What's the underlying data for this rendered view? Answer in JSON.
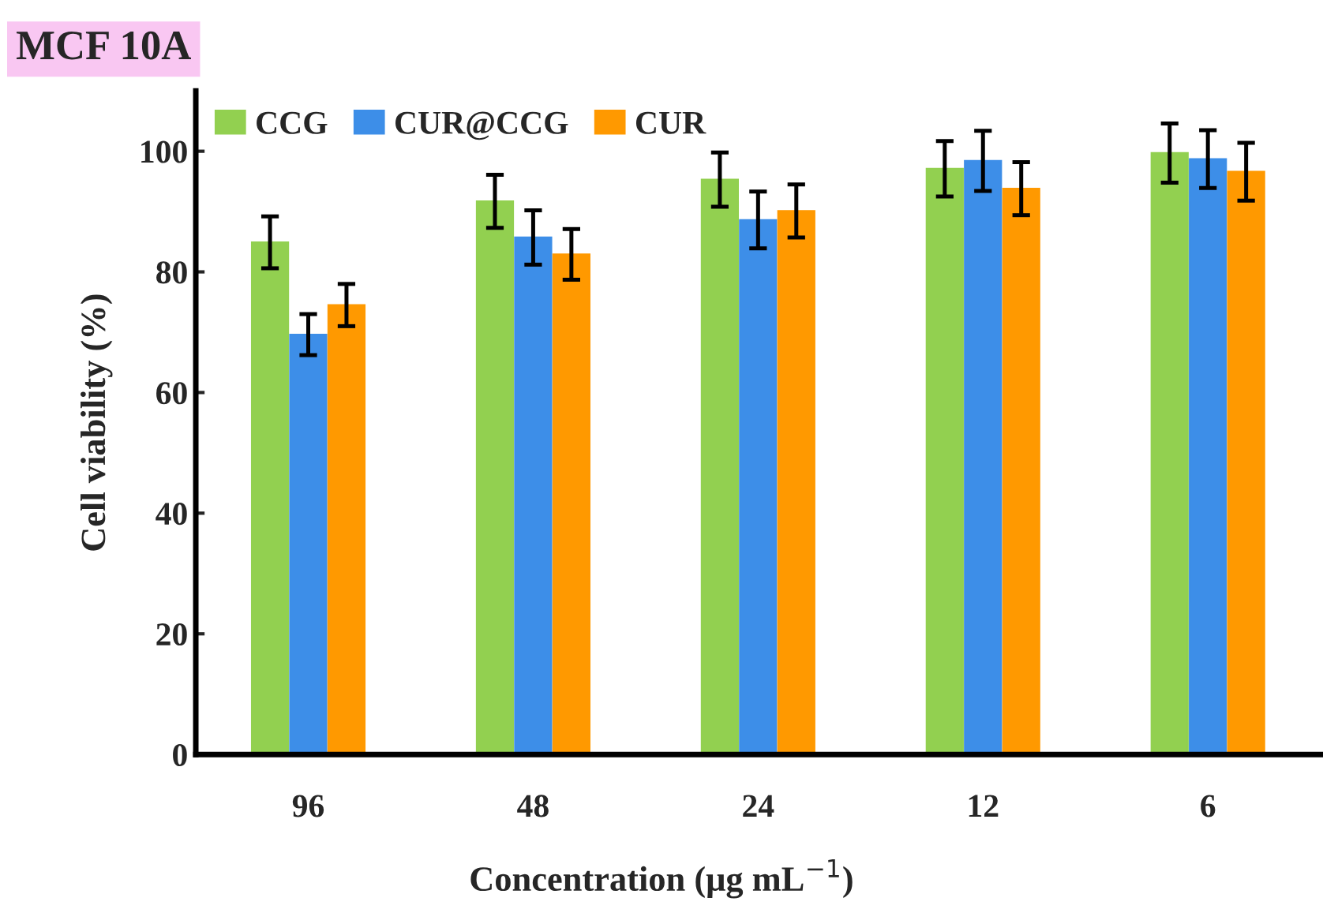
{
  "chart_data": {
    "type": "bar",
    "title": "MCF 10A",
    "xlabel": "Concentration (μg mL$^{−1}$)",
    "ylabel": "Cell viability (%)",
    "categories": [
      "96",
      "48",
      "24",
      "12",
      "6"
    ],
    "series": [
      {
        "name": "CCG",
        "color": "#92d050",
        "values": [
          84.9,
          91.7,
          95.3,
          97.1,
          99.7
        ],
        "errors": [
          4.3,
          4.4,
          4.5,
          4.6,
          4.9
        ]
      },
      {
        "name": "CUR@CCG",
        "color": "#3d8ee8",
        "values": [
          69.6,
          85.7,
          88.6,
          98.4,
          98.7
        ],
        "errors": [
          3.4,
          4.5,
          4.7,
          5.0,
          4.8
        ]
      },
      {
        "name": "CUR",
        "color": "#ff9900",
        "values": [
          74.5,
          82.9,
          90.1,
          93.8,
          96.6
        ],
        "errors": [
          3.5,
          4.2,
          4.4,
          4.4,
          4.8
        ]
      }
    ],
    "ylim": [
      0,
      110
    ],
    "yticks": [
      0,
      20,
      40,
      60,
      80,
      100
    ],
    "grid": false,
    "legend": "top left"
  }
}
